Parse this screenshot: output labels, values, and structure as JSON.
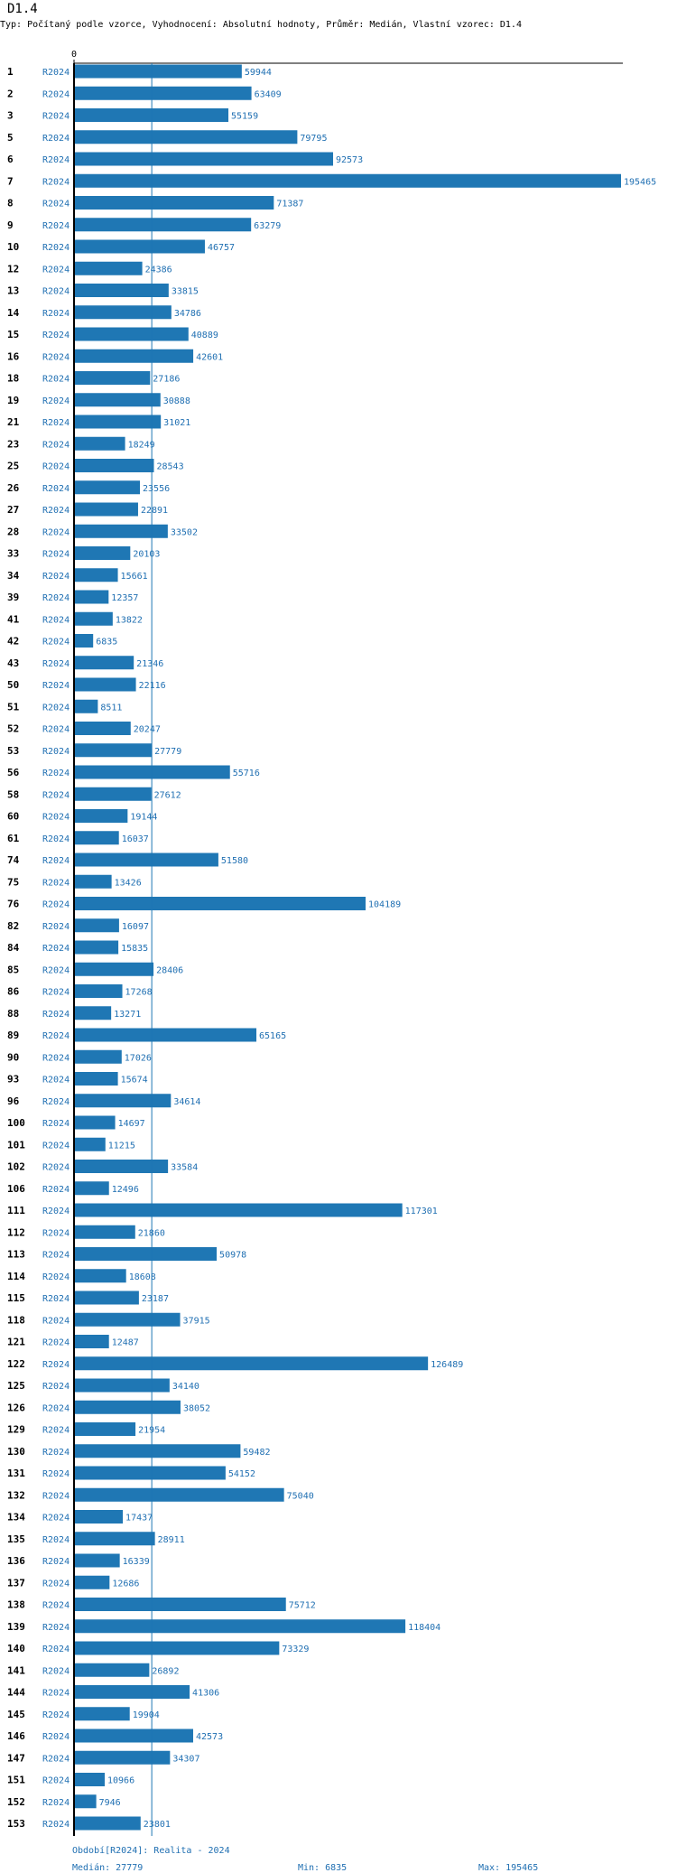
{
  "header": {
    "title": "D1.4",
    "subtitle": "Typ: Počítaný podle vzorce, Vyhodnocení: Absolutní hodnoty, Průměr: Medián, Vlastní vzorec: D1.4"
  },
  "footer": {
    "period": "Období[R2024]: Realita - 2024",
    "median": "Medián: 27779",
    "min": "Min: 6835",
    "max": "Max: 195465"
  },
  "colors": {
    "bar": "#1f77b4",
    "text": "#1f6fb2"
  },
  "chart_data": {
    "type": "bar",
    "orientation": "horizontal",
    "series_label": "R2024",
    "x_tick_labels": [
      "0"
    ],
    "median": 27779,
    "xlim": [
      0,
      195465
    ],
    "categories": [
      "1",
      "2",
      "3",
      "5",
      "6",
      "7",
      "8",
      "9",
      "10",
      "12",
      "13",
      "14",
      "15",
      "16",
      "18",
      "19",
      "21",
      "23",
      "25",
      "26",
      "27",
      "28",
      "33",
      "34",
      "39",
      "41",
      "42",
      "43",
      "50",
      "51",
      "52",
      "53",
      "56",
      "58",
      "60",
      "61",
      "74",
      "75",
      "76",
      "82",
      "84",
      "85",
      "86",
      "88",
      "89",
      "90",
      "93",
      "96",
      "100",
      "101",
      "102",
      "106",
      "111",
      "112",
      "113",
      "114",
      "115",
      "118",
      "121",
      "122",
      "125",
      "126",
      "129",
      "130",
      "131",
      "132",
      "134",
      "135",
      "136",
      "137",
      "138",
      "139",
      "140",
      "141",
      "144",
      "145",
      "146",
      "147",
      "151",
      "152",
      "153"
    ],
    "values": [
      59944,
      63409,
      55159,
      79795,
      92573,
      195465,
      71387,
      63279,
      46757,
      24386,
      33815,
      34786,
      40889,
      42601,
      27186,
      30888,
      31021,
      18249,
      28543,
      23556,
      22891,
      33502,
      20103,
      15661,
      12357,
      13822,
      6835,
      21346,
      22116,
      8511,
      20247,
      27779,
      55716,
      27612,
      19144,
      16037,
      51580,
      13426,
      104189,
      16097,
      15835,
      28406,
      17268,
      13271,
      65165,
      17026,
      15674,
      34614,
      14697,
      11215,
      33584,
      12496,
      117301,
      21860,
      50978,
      18608,
      23187,
      37915,
      12487,
      126489,
      34140,
      38052,
      21954,
      59482,
      54152,
      75040,
      17437,
      28911,
      16339,
      12686,
      75712,
      118404,
      73329,
      26892,
      41306,
      19904,
      42573,
      34307,
      10966,
      7946,
      23801
    ]
  }
}
